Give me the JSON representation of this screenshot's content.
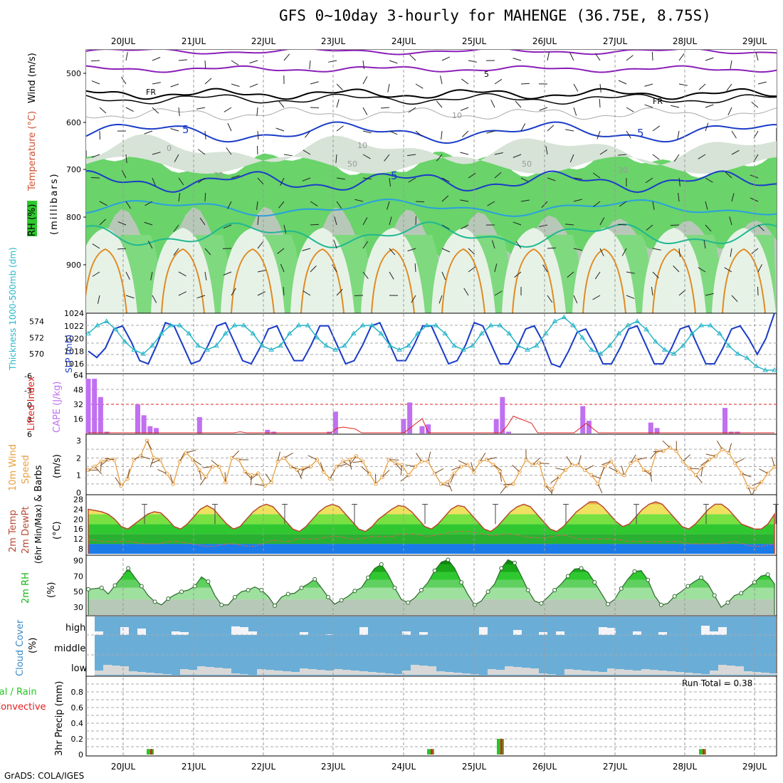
{
  "title": "GFS 0~10day 3-hourly for MAHENGE (36.75E, 8.75S)",
  "credit": "GrADS: COLA/IGES",
  "run_total": "Run Total = 0.38",
  "date_labels": [
    "20JUL",
    "21JUL",
    "22JUL",
    "23JUL",
    "24JUL",
    "25JUL",
    "26JUL",
    "27JUL",
    "28JUL",
    "29JUL"
  ],
  "colors": {
    "rh_green": "#2ec82e",
    "temp_line": "#b84a32",
    "dewpt_line": "#d26a5a",
    "slp": "#1a3cc8",
    "thickness": "#29b6c8",
    "cape": "#c070f0",
    "wind": "#e8a040",
    "rh2m": "#18b418",
    "cloud_bg": "#6aaed8",
    "precip_total": "#22c822",
    "precip_conv": "#e02020"
  },
  "panels": {
    "upper": {
      "labels": [
        "Wind (m/s)",
        "Temperature (°C)",
        "RH (%)",
        "(millibars)"
      ],
      "yticks": [
        "500",
        "600",
        "700",
        "800",
        "900"
      ],
      "contour_labels": [
        "5",
        "FR",
        "5",
        "FR",
        "10",
        "5",
        "0",
        "30",
        "10",
        "50",
        "5",
        "50",
        "30"
      ]
    },
    "slp": {
      "left_label": "Thickness 1000-500mb (dm)",
      "right_label": "SLP (mb)",
      "left_ticks": [
        "574",
        "572",
        "570"
      ],
      "right_ticks": [
        "1024",
        "1022",
        "1020",
        "1018",
        "1016"
      ]
    },
    "cape": {
      "left_label": "Lifted Index",
      "right_label": "CAPE (J/kg)",
      "left_ticks": [
        "-6",
        "-3",
        "0",
        "3",
        "6"
      ],
      "right_ticks": [
        "64",
        "48",
        "32",
        "16"
      ]
    },
    "wind": {
      "label": "10m Wind Speed & Barbs (m/s)",
      "ticks": [
        "3",
        "2",
        "1",
        "0"
      ]
    },
    "temp": {
      "label": "2m Temp 2m DewPt (6hr Min/Max) (°C)",
      "ticks": [
        "28",
        "24",
        "20",
        "16",
        "12",
        "8"
      ]
    },
    "rh": {
      "label": "2m RH (%)",
      "ticks": [
        "90",
        "70",
        "50",
        "30"
      ]
    },
    "cloud": {
      "label": "Cloud Cover (%)",
      "levels": [
        "high",
        "middle",
        "low"
      ]
    },
    "precip": {
      "label": "3hr Precip (mm)",
      "legend_total": "Total / Rain",
      "legend_conv": "Convective",
      "ticks": [
        "0.8",
        "0.6",
        "0.4",
        "0.2",
        "0"
      ]
    }
  },
  "chart_data": [
    {
      "type": "line",
      "name": "slp",
      "unit": "mb",
      "x_labels": [
        "20JUL",
        "21JUL",
        "22JUL",
        "23JUL",
        "24JUL",
        "25JUL",
        "26JUL",
        "27JUL",
        "28JUL",
        "29JUL"
      ],
      "values": [
        1018,
        1017,
        1018.5,
        1021.5,
        1022,
        1019.5,
        1016.5,
        1016,
        1019,
        1022.5,
        1022,
        1019,
        1016,
        1016.5,
        1019,
        1022,
        1022.5,
        1019.5,
        1016.5,
        1016,
        1018.5,
        1021.5,
        1022,
        1019,
        1016.5,
        1016.5,
        1019,
        1022,
        1022,
        1019,
        1016,
        1016.5,
        1019,
        1022,
        1022.5,
        1019.5,
        1016.5,
        1016.5,
        1019,
        1022,
        1022,
        1019,
        1016,
        1016.5,
        1019,
        1022.5,
        1022,
        1019,
        1016,
        1016,
        1018.5,
        1021.5,
        1022,
        1019.5,
        1016,
        1015.5,
        1018,
        1021,
        1021.5,
        1019,
        1016,
        1016,
        1018.5,
        1021.5,
        1022,
        1019,
        1016,
        1016,
        1018.5,
        1021.5,
        1022,
        1019,
        1016,
        1016,
        1018.5,
        1021.5,
        1022,
        1020,
        1017.5,
        1020,
        1024
      ]
    },
    {
      "type": "line",
      "name": "thickness",
      "unit": "dm",
      "values": [
        572.5,
        573.5,
        574,
        573,
        571.5,
        570.5,
        570,
        571,
        572.5,
        573.5,
        573.5,
        572.5,
        571,
        570.5,
        571,
        572.5,
        573.5,
        573.5,
        572.5,
        571,
        570.5,
        571,
        572.5,
        573.5,
        573.5,
        572,
        571,
        570.5,
        571,
        572.5,
        573.5,
        573.5,
        572.5,
        571,
        570.5,
        571,
        572.5,
        573.5,
        573.5,
        572.5,
        571,
        570.5,
        571,
        572.5,
        573.5,
        573.5,
        572.5,
        571,
        570.5,
        571,
        572.5,
        574,
        574.5,
        573.5,
        572,
        570.5,
        570,
        571,
        572.5,
        573.5,
        574,
        573,
        571.5,
        570.5,
        570,
        571,
        572.5,
        573.5,
        573.5,
        572.5,
        571,
        570,
        569.5,
        568.5,
        568,
        568
      ]
    },
    {
      "type": "bar",
      "name": "cape",
      "unit": "J/kg",
      "values": [
        60,
        60,
        40,
        2,
        0,
        0,
        0,
        0,
        32,
        20,
        8,
        6,
        0,
        0,
        0,
        0,
        0,
        0,
        18,
        0,
        0,
        0,
        0,
        0,
        0,
        0,
        0,
        0,
        0,
        4,
        2,
        0,
        0,
        0,
        0,
        0,
        0,
        0,
        0,
        2,
        24,
        0,
        0,
        0,
        0,
        0,
        0,
        0,
        0,
        0,
        0,
        16,
        34,
        0,
        8,
        10,
        0,
        0,
        0,
        0,
        0,
        0,
        0,
        0,
        0,
        0,
        16,
        40,
        2,
        0,
        0,
        0,
        0,
        0,
        0,
        0,
        0,
        0,
        0,
        0,
        30,
        14,
        0,
        0,
        0,
        0,
        0,
        0,
        0,
        0,
        0,
        12,
        6,
        0,
        0,
        0,
        0,
        0,
        0,
        0,
        0,
        0,
        0,
        28,
        2,
        2,
        0,
        0,
        0,
        0,
        0,
        0
      ]
    },
    {
      "type": "line",
      "name": "lifted_index",
      "unit": "",
      "values": [
        6,
        6,
        6,
        6,
        6,
        6,
        6,
        6,
        6,
        6,
        6,
        6,
        6,
        6,
        6,
        6,
        6,
        6,
        6,
        6,
        6,
        6,
        6,
        6,
        6,
        5.8,
        6,
        6,
        6,
        6,
        6,
        6,
        6,
        6,
        6,
        6,
        6,
        6,
        6,
        6,
        6,
        5,
        4.8,
        5,
        5.2,
        6,
        6,
        6,
        6,
        6,
        6,
        6,
        6,
        5,
        4,
        3,
        6,
        6,
        6,
        6,
        6,
        6,
        6,
        6,
        6,
        6,
        6,
        6,
        6,
        4.5,
        2.5,
        3,
        3.5,
        4,
        6,
        6,
        6,
        6,
        6,
        6,
        6,
        5,
        4,
        5,
        6,
        6,
        6,
        6,
        6,
        6,
        6,
        6,
        6,
        6,
        6,
        6,
        6,
        6,
        6,
        6,
        6,
        6,
        6,
        6,
        6,
        6,
        6,
        6,
        6,
        6,
        6,
        6,
        6,
        6
      ]
    },
    {
      "type": "line",
      "name": "wind_speed_10m",
      "unit": "m/s",
      "values": [
        1.3,
        1.5,
        1.8,
        1.9,
        1.9,
        0.4,
        0.8,
        1.9,
        2.1,
        3.0,
        2.0,
        1.9,
        1.1,
        0.5,
        1.8,
        2.3,
        1.9,
        1.3,
        0.9,
        1.5,
        1.5,
        0.6,
        2.0,
        1.9,
        1.2,
        1.0,
        1.1,
        0.4,
        0.6,
        1.8,
        2.0,
        1.5,
        1.3,
        1.4,
        1.5,
        1.9,
        1.2,
        0.8,
        1.5,
        1.8,
        1.9,
        2.1,
        1.8,
        1.1,
        0.5,
        0.9,
        1.9,
        1.7,
        1.6,
        1.0,
        1.5,
        1.8,
        1.8,
        1.1,
        0.5,
        0.6,
        1.1,
        1.5,
        1.6,
        1.2,
        1.8,
        1.9,
        1.6,
        1.2,
        0.4,
        0.5,
        1.2,
        1.9,
        1.6,
        1.7,
        0.4,
        0.2,
        0.9,
        1.3,
        1.6,
        1.6,
        1.3,
        1.0,
        0.5,
        1.5,
        1.8,
        1.2,
        1.0,
        1.7,
        1.9,
        1.3,
        1.2,
        2.4,
        2.4,
        2.6,
        2.4,
        1.8,
        1.4,
        1.0,
        1.5,
        1.9,
        2.1,
        2.5,
        2.3,
        1.7,
        1.1,
        0.3,
        0.2,
        0.6,
        1.1,
        1.5
      ]
    },
    {
      "type": "area",
      "name": "temp_2m",
      "unit": "°C",
      "values": [
        24,
        23.5,
        23,
        22,
        20,
        17,
        16,
        18,
        20,
        22,
        23,
        22.5,
        20,
        17,
        16,
        18,
        21,
        24,
        25.5,
        24,
        21,
        18,
        16,
        17,
        20,
        23,
        25,
        26,
        25,
        22,
        19,
        16,
        15,
        17,
        20,
        23,
        25,
        26,
        25,
        22,
        19,
        16,
        15,
        17,
        20,
        22,
        24,
        25.5,
        25,
        23,
        20,
        17,
        16,
        18,
        21,
        24,
        25.5,
        25,
        22,
        19,
        16,
        15,
        17,
        20,
        23,
        25,
        26,
        25,
        22,
        19,
        16,
        15,
        17,
        20,
        23,
        25,
        27,
        27,
        25,
        22,
        19,
        17,
        18,
        21,
        24,
        26,
        27,
        26,
        23,
        20,
        17,
        16,
        18,
        21,
        24,
        26,
        26,
        24,
        21,
        18,
        17,
        16,
        16,
        18,
        22
      ]
    },
    {
      "type": "line",
      "name": "dewpt_2m",
      "unit": "°C",
      "values": [
        12,
        11.5,
        11,
        11,
        11,
        11,
        11,
        10.5,
        10,
        10,
        10,
        10.5,
        11,
        11,
        10.5,
        10,
        9.5,
        9,
        9,
        9.5,
        10,
        10,
        9.5,
        9,
        9,
        10,
        11,
        11.5,
        11,
        11,
        12,
        12,
        12,
        12,
        12.5,
        13,
        13,
        12.5,
        12,
        12,
        12.5,
        13,
        13,
        13,
        13,
        14,
        14,
        14,
        13.5,
        13,
        13.5,
        14,
        14.5,
        15,
        15,
        15,
        14.5,
        14,
        13.5,
        13.5,
        14,
        14,
        13.5,
        13,
        12.5,
        12.5,
        12.5,
        13,
        13.5,
        13.5,
        12.5,
        12,
        12,
        12,
        12,
        12,
        12,
        11.5,
        11,
        11,
        11,
        11,
        11,
        11,
        11,
        11,
        10.5,
        10,
        10,
        10,
        10,
        10,
        10.5,
        11,
        10.5,
        9.5,
        9,
        9,
        9.5,
        10
      ]
    },
    {
      "type": "area",
      "name": "rh_2m",
      "unit": "%",
      "values": [
        53,
        54,
        55,
        47,
        58,
        68,
        80,
        68,
        57,
        45,
        37,
        33,
        41,
        46,
        50,
        52,
        57,
        69,
        63,
        45,
        33,
        33,
        43,
        50,
        52,
        56,
        52,
        44,
        32,
        43,
        47,
        48,
        55,
        60,
        66,
        55,
        43,
        34,
        39,
        44,
        51,
        55,
        68,
        80,
        85,
        72,
        55,
        40,
        36,
        42,
        52,
        62,
        77,
        88,
        91,
        80,
        62,
        46,
        33,
        38,
        50,
        60,
        80,
        91,
        87,
        70,
        52,
        38,
        35,
        43,
        52,
        60,
        70,
        79,
        80,
        75,
        62,
        48,
        34,
        40,
        54,
        66,
        76,
        77,
        65,
        45,
        33,
        35,
        44,
        50,
        57,
        63,
        68,
        60,
        45,
        30,
        36,
        45,
        48,
        55,
        62,
        70,
        72,
        60
      ]
    },
    {
      "type": "bar",
      "name": "precip_3hr",
      "unit": "mm",
      "values": [
        {
          "x": "20JUL",
          "v": 0.07
        },
        {
          "x": "24JUL",
          "v": 0.07
        },
        {
          "x": "25JUL",
          "v": 0.2
        },
        {
          "x": "28JUL",
          "v": 0.07
        }
      ]
    }
  ]
}
